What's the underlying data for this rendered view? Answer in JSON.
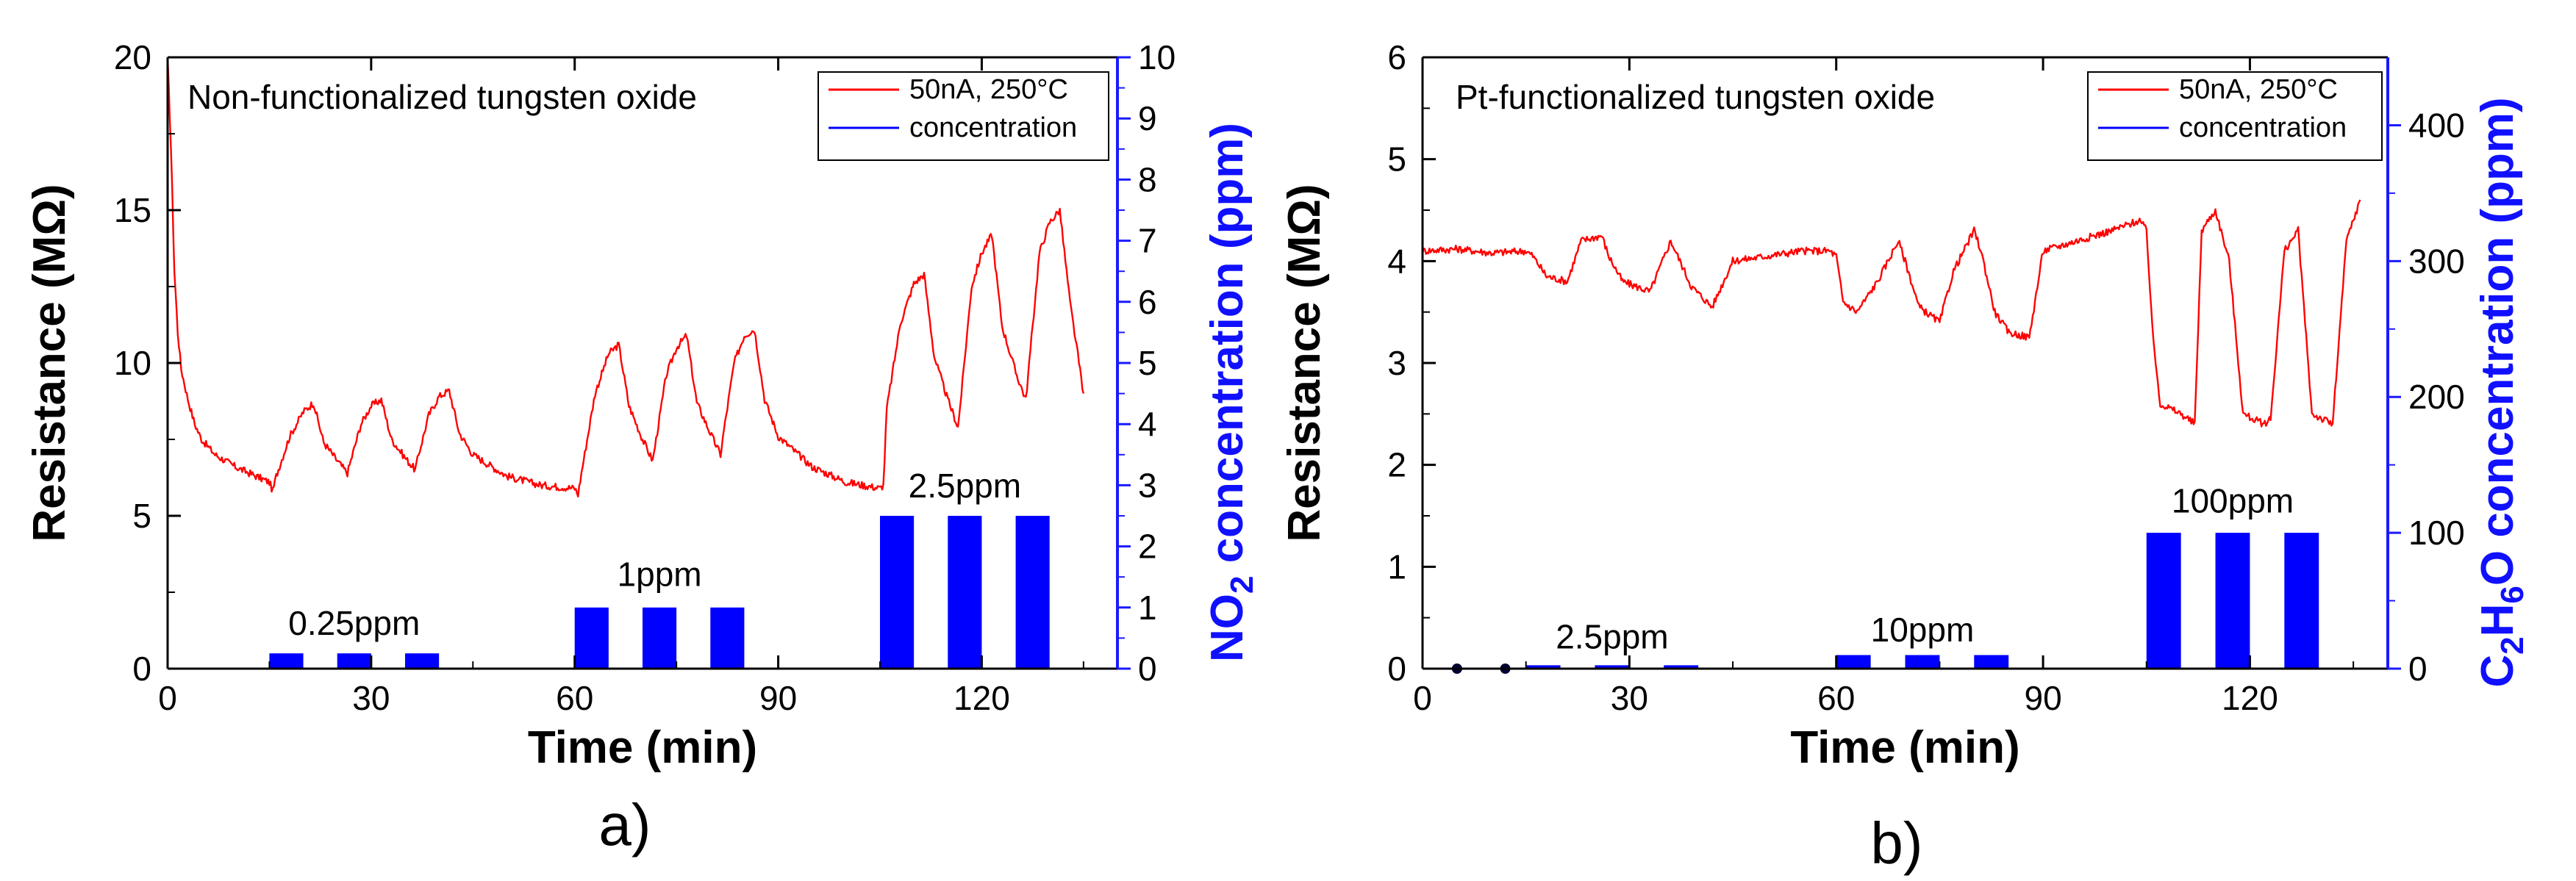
{
  "chart_data": [
    {
      "type": "line",
      "panel_label": "a)",
      "title": "Non-functionalized tungsten oxide",
      "xlabel": "Time (min)",
      "ylabel": "Resistance (MΩ)",
      "y2label_parts": [
        "NO",
        "2",
        " concentration (ppm)"
      ],
      "xlim": [
        0,
        140
      ],
      "ylim": [
        0,
        20
      ],
      "y2lim": [
        0,
        10
      ],
      "xticks": [
        0,
        30,
        60,
        90,
        120
      ],
      "yticks": [
        0,
        5,
        10,
        15,
        20
      ],
      "y2ticks": [
        0,
        1,
        2,
        3,
        4,
        5,
        6,
        7,
        8,
        9,
        10
      ],
      "legend": {
        "position": "top-right",
        "entries": [
          {
            "label": "50nA, 250°C",
            "color": "#ff0000"
          },
          {
            "label": "concentration",
            "color": "#0000ff"
          }
        ]
      },
      "resistance_series": {
        "name": "50nA, 250°C",
        "color": "#ff0000",
        "x": [
          0,
          0.5,
          1,
          1.5,
          2,
          3,
          4,
          5,
          7,
          10,
          13,
          15,
          15.5,
          16,
          18,
          20,
          21.5,
          23,
          25,
          26.5,
          27,
          28.5,
          30,
          31.5,
          33,
          35,
          36.5,
          37,
          38.5,
          40,
          41.5,
          43,
          45,
          50,
          55,
          60,
          60.5,
          61,
          63,
          65,
          66.5,
          68,
          70,
          71.5,
          72,
          73.5,
          75,
          76.5,
          78,
          80,
          81.5,
          82,
          83.5,
          85,
          86.5,
          88,
          90,
          95,
          100,
          105,
          105.5,
          106,
          108,
          110,
          111.5,
          113,
          115,
          116.5,
          117,
          118.5,
          120,
          121.5,
          123,
          125,
          126.5,
          127,
          128.5,
          130,
          131.5,
          133,
          135
        ],
        "y": [
          20,
          17,
          13,
          11,
          9.8,
          8.8,
          8.0,
          7.5,
          7.0,
          6.6,
          6.3,
          6.1,
          5.8,
          6.3,
          7.6,
          8.4,
          8.7,
          7.4,
          6.8,
          6.4,
          6.8,
          8.0,
          8.6,
          8.8,
          7.5,
          6.9,
          6.5,
          7.0,
          8.3,
          8.9,
          9.1,
          7.7,
          7.0,
          6.3,
          6.0,
          5.9,
          5.7,
          6.4,
          9.0,
          10.3,
          10.6,
          8.6,
          7.5,
          6.8,
          7.5,
          9.6,
          10.5,
          10.9,
          8.7,
          7.7,
          7.0,
          7.8,
          10.0,
          10.9,
          11.1,
          8.8,
          7.6,
          6.6,
          6.1,
          5.9,
          6.0,
          8.5,
          11.3,
          12.6,
          12.9,
          10.2,
          8.8,
          7.9,
          9.0,
          12.5,
          13.6,
          14.2,
          11.2,
          9.7,
          8.8,
          10.0,
          13.6,
          14.6,
          15.0,
          12.0,
          9.0
        ]
      },
      "concentration_series": {
        "name": "concentration",
        "color": "#0000ff",
        "pulses": [
          {
            "start": 15,
            "end": 20,
            "value": 0.25
          },
          {
            "start": 25,
            "end": 30,
            "value": 0.25
          },
          {
            "start": 35,
            "end": 40,
            "value": 0.25
          },
          {
            "start": 60,
            "end": 65,
            "value": 1
          },
          {
            "start": 70,
            "end": 75,
            "value": 1
          },
          {
            "start": 80,
            "end": 85,
            "value": 1
          },
          {
            "start": 105,
            "end": 110,
            "value": 2.5
          },
          {
            "start": 115,
            "end": 120,
            "value": 2.5
          },
          {
            "start": 125,
            "end": 130,
            "value": 2.5
          }
        ]
      },
      "annotations": [
        {
          "text": "0.25ppm",
          "x": 27.5,
          "y2": 0.55
        },
        {
          "text": "1ppm",
          "x": 72.5,
          "y2": 1.35
        },
        {
          "text": "2.5ppm",
          "x": 117.5,
          "y2": 2.8
        }
      ]
    },
    {
      "type": "line",
      "panel_label": "b)",
      "title": "Pt-functionalized tungsten oxide",
      "xlabel": "Time (min)",
      "ylabel": "Resistance (MΩ)",
      "y2label_parts": [
        "C",
        "2",
        "H",
        "6",
        "O concentration (ppm)"
      ],
      "xlim": [
        0,
        140
      ],
      "ylim": [
        0,
        6
      ],
      "y2lim": [
        0,
        450
      ],
      "xticks": [
        0,
        30,
        60,
        90,
        120
      ],
      "yticks": [
        0,
        1,
        2,
        3,
        4,
        5,
        6
      ],
      "y2ticks": [
        0,
        100,
        200,
        300,
        400
      ],
      "legend": {
        "position": "top-right",
        "entries": [
          {
            "label": "50nA, 250°C",
            "color": "#ff0000"
          },
          {
            "label": "concentration",
            "color": "#0000ff"
          }
        ]
      },
      "resistance_series": {
        "name": "50nA, 250°C",
        "color": "#ff0000",
        "x": [
          0,
          5,
          10,
          15,
          16,
          18,
          21,
          23,
          26,
          27,
          29,
          31,
          33,
          36,
          37,
          39,
          42,
          45,
          50,
          55,
          59,
          60,
          61,
          63,
          66,
          69,
          70,
          72,
          75,
          77,
          80,
          81,
          83,
          85,
          88,
          90,
          95,
          100,
          104,
          105,
          106,
          107,
          110,
          112,
          113,
          115,
          117,
          119,
          122,
          123,
          125,
          127,
          129,
          132,
          134,
          136
        ],
        "y": [
          4.1,
          4.12,
          4.08,
          4.1,
          4.05,
          3.85,
          3.8,
          4.2,
          4.25,
          4.05,
          3.8,
          3.75,
          3.7,
          4.2,
          4.05,
          3.75,
          3.55,
          4.0,
          4.05,
          4.1,
          4.1,
          4.05,
          3.6,
          3.5,
          3.8,
          4.2,
          4.0,
          3.55,
          3.4,
          3.9,
          4.3,
          4.1,
          3.5,
          3.3,
          3.25,
          4.1,
          4.2,
          4.3,
          4.4,
          4.3,
          3.2,
          2.6,
          2.5,
          2.4,
          4.3,
          4.5,
          4.0,
          2.5,
          2.4,
          2.45,
          4.1,
          4.3,
          2.5,
          2.4,
          4.2,
          4.6
        ]
      },
      "concentration_series": {
        "name": "concentration",
        "color": "#0000ff",
        "pulses": [
          {
            "start": 15,
            "end": 20,
            "value": 2.5
          },
          {
            "start": 25,
            "end": 30,
            "value": 2.5
          },
          {
            "start": 35,
            "end": 40,
            "value": 2.5
          },
          {
            "start": 60,
            "end": 65,
            "value": 10
          },
          {
            "start": 70,
            "end": 75,
            "value": 10
          },
          {
            "start": 80,
            "end": 85,
            "value": 10
          },
          {
            "start": 105,
            "end": 110,
            "value": 100
          },
          {
            "start": 115,
            "end": 120,
            "value": 100
          },
          {
            "start": 125,
            "end": 130,
            "value": 100
          }
        ],
        "markers": [
          {
            "x": 5,
            "value": 0
          },
          {
            "x": 12,
            "value": 0
          }
        ]
      },
      "annotations": [
        {
          "text": "2.5ppm",
          "x": 27.5,
          "y2": 15
        },
        {
          "text": "10ppm",
          "x": 72.5,
          "y2": 20
        },
        {
          "text": "100ppm",
          "x": 117.5,
          "y2": 115
        }
      ]
    }
  ]
}
